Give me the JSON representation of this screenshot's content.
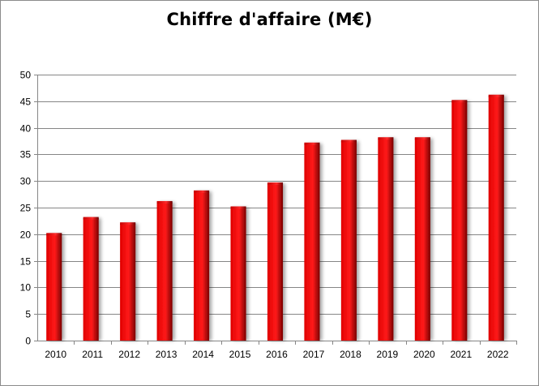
{
  "chart_data": {
    "type": "bar",
    "title": "Chiffre d'affaire (M€)",
    "xlabel": "",
    "ylabel": "",
    "categories": [
      "2010",
      "2011",
      "2012",
      "2013",
      "2014",
      "2015",
      "2016",
      "2017",
      "2018",
      "2019",
      "2020",
      "2021",
      "2022"
    ],
    "values": [
      20,
      23,
      22,
      26,
      28,
      25,
      29.5,
      37,
      37.5,
      38,
      38,
      45,
      46
    ],
    "ylim": [
      0,
      50
    ],
    "yticks": [
      0,
      5,
      10,
      15,
      20,
      25,
      30,
      35,
      40,
      45,
      50
    ],
    "grid": true,
    "legend": "none",
    "bar_color": "#e00000",
    "bar_color_dark": "#7a0000"
  }
}
